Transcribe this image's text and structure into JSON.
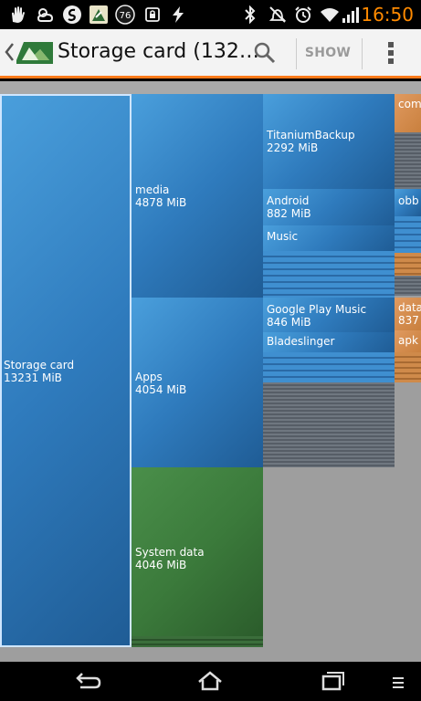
{
  "status_bar": {
    "time": "16:50",
    "notification_badge": "76",
    "icons": [
      "hand-icon",
      "weather-icon",
      "swype-icon",
      "app-notify-icon",
      "badge-icon",
      "lock-notify-icon",
      "flash-icon",
      "bluetooth-icon",
      "mute-icon",
      "alarm-icon",
      "wifi-icon",
      "signal-icon"
    ]
  },
  "action_bar": {
    "title": "Storage card (132…",
    "show_label": "SHOW"
  },
  "treemap": {
    "nodes": {
      "storage_card": {
        "name": "Storage card",
        "size": "13231 MiB"
      },
      "media": {
        "name": "media",
        "size": "4878 MiB"
      },
      "apps": {
        "name": "Apps",
        "size": "4054 MiB"
      },
      "system_data": {
        "name": "System data",
        "size": "4046 MiB"
      },
      "titanium": {
        "name": "TitaniumBackup",
        "size": "2292 MiB"
      },
      "android": {
        "name": "Android",
        "size": "882 MiB"
      },
      "music": {
        "name": "Music"
      },
      "google_play_music": {
        "name": "Google Play Music",
        "size": "846 MiB"
      },
      "bladeslinger": {
        "name": "Bladeslinger"
      },
      "com_partial": {
        "name": "com"
      },
      "obb_partial": {
        "name": "obb"
      },
      "data_partial": {
        "name": "data",
        "size": "837"
      },
      "apk_partial": {
        "name": "apk"
      }
    }
  }
}
